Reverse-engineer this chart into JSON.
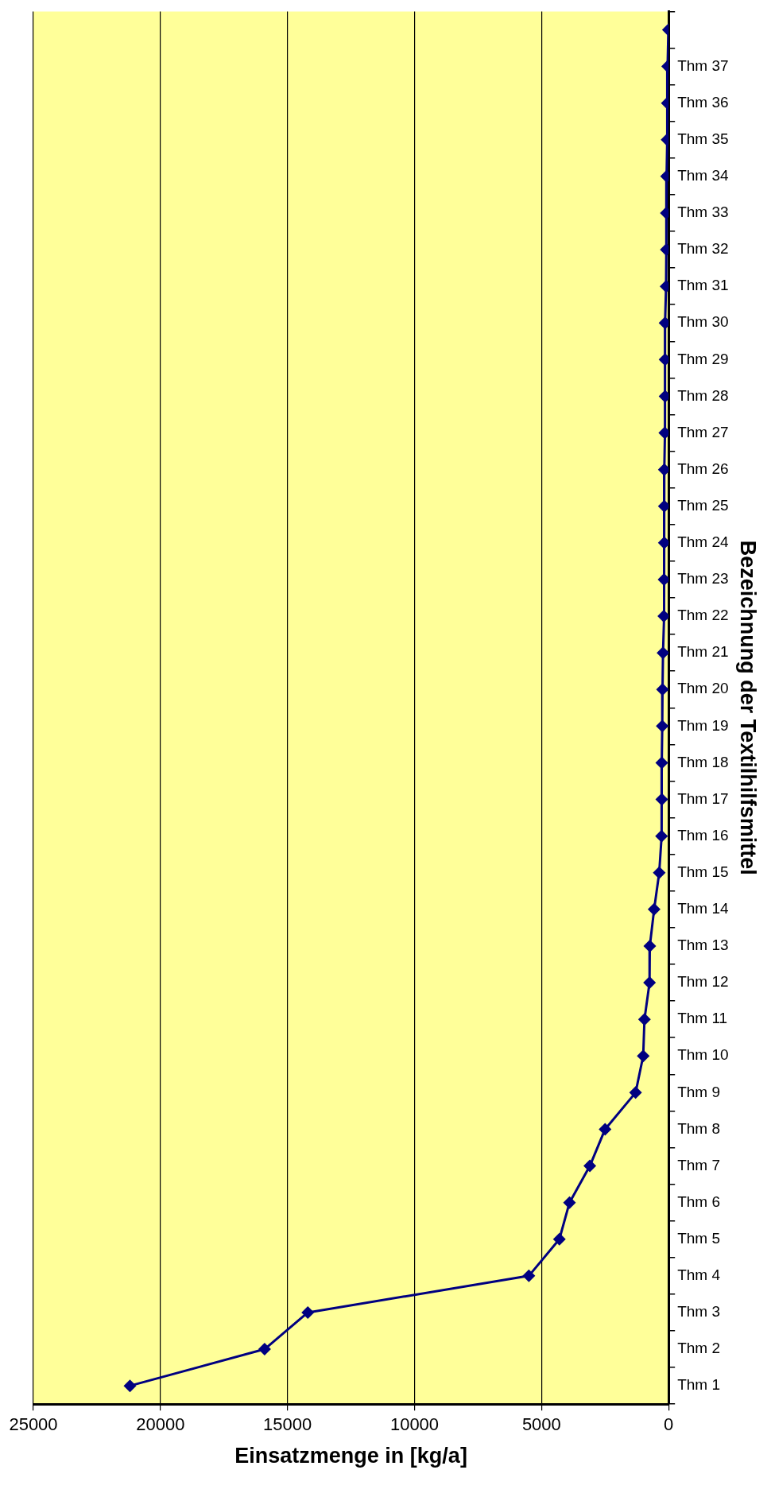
{
  "chart_data": {
    "type": "line",
    "orientation": "horizontal",
    "xlabel": "Einsatzmenge in [kg/a]",
    "ylabel": "Bezeichnung der Textilhilfsmittel",
    "categories": [
      null,
      "Thm 37",
      "Thm 36",
      "Thm 35",
      "Thm 34",
      "Thm 33",
      "Thm 32",
      "Thm 31",
      "Thm 30",
      "Thm 29",
      "Thm 28",
      "Thm 27",
      "Thm 26",
      "Thm 25",
      "Thm 24",
      "Thm 23",
      "Thm 22",
      "Thm 21",
      "Thm 20",
      "Thm 19",
      "Thm 18",
      "Thm 17",
      "Thm 16",
      "Thm 15",
      "Thm 14",
      "Thm 13",
      "Thm 12",
      "Thm 11",
      "Thm 10",
      "Thm 9",
      "Thm 8",
      "Thm 7",
      "Thm 6",
      "Thm 5",
      "Thm 4",
      "Thm 3",
      "Thm 2",
      "Thm 1"
    ],
    "series": [
      {
        "color": "#000080",
        "values": [
          10,
          40,
          50,
          60,
          80,
          90,
          90,
          100,
          140,
          140,
          140,
          150,
          170,
          170,
          170,
          180,
          190,
          220,
          240,
          250,
          270,
          270,
          280,
          370,
          570,
          740,
          750,
          950,
          1000,
          1300,
          2500,
          3100,
          3900,
          4300,
          5500,
          14200,
          15900,
          21200
        ]
      }
    ],
    "xlim": [
      25000,
      0
    ],
    "xticks": [
      0,
      5000,
      10000,
      15000,
      20000,
      25000
    ],
    "grid": "x",
    "marker": "diamond",
    "line_style": "solid"
  }
}
